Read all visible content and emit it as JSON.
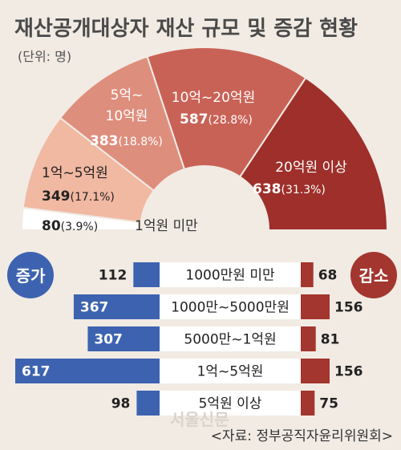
{
  "title": "재산공개대상자 재산 규모 및 증감 현황",
  "unit": "(단위: 명)",
  "colors": {
    "background": "#f1ebe4",
    "title": "#4a4a4a",
    "seg_under_1": "#ffffff",
    "seg_1_5": "#f1b8a2",
    "seg_5_10": "#de8e7d",
    "seg_10_20": "#c96256",
    "seg_20_plus": "#9e2f2a",
    "increase": "#3d63b0",
    "decrease": "#a3362e"
  },
  "labels": {
    "increase": "증가",
    "decrease": "감소"
  },
  "source": "<자료: 정부공직자윤리위원회>",
  "watermark": "서울신문",
  "chart_data": [
    {
      "type": "pie",
      "title": "재산공개대상자 재산 규모",
      "unit": "명",
      "slices": [
        {
          "label": "1억원 미만",
          "value": 80,
          "percent": "(3.9%)"
        },
        {
          "label": "1억~5억원",
          "value": 349,
          "percent": "(17.1%)"
        },
        {
          "label_lines": [
            "5억~",
            "10억원"
          ],
          "label": "5억~10억원",
          "value": 383,
          "percent": "(18.8%)"
        },
        {
          "label": "10억~20억원",
          "value": 587,
          "percent": "(28.8%)"
        },
        {
          "label": "20억원 이상",
          "value": 638,
          "percent": "(31.3%)"
        }
      ]
    },
    {
      "type": "bar",
      "title": "재산 증감 현황",
      "unit": "명",
      "categories": [
        "1000만원 미만",
        "1000만~5000만원",
        "5000만~1억원",
        "1억~5억원",
        "5억원 이상"
      ],
      "series": [
        {
          "name": "증가",
          "values": [
            112,
            367,
            307,
            617,
            98
          ]
        },
        {
          "name": "감소",
          "values": [
            68,
            156,
            81,
            156,
            75
          ]
        }
      ]
    }
  ]
}
